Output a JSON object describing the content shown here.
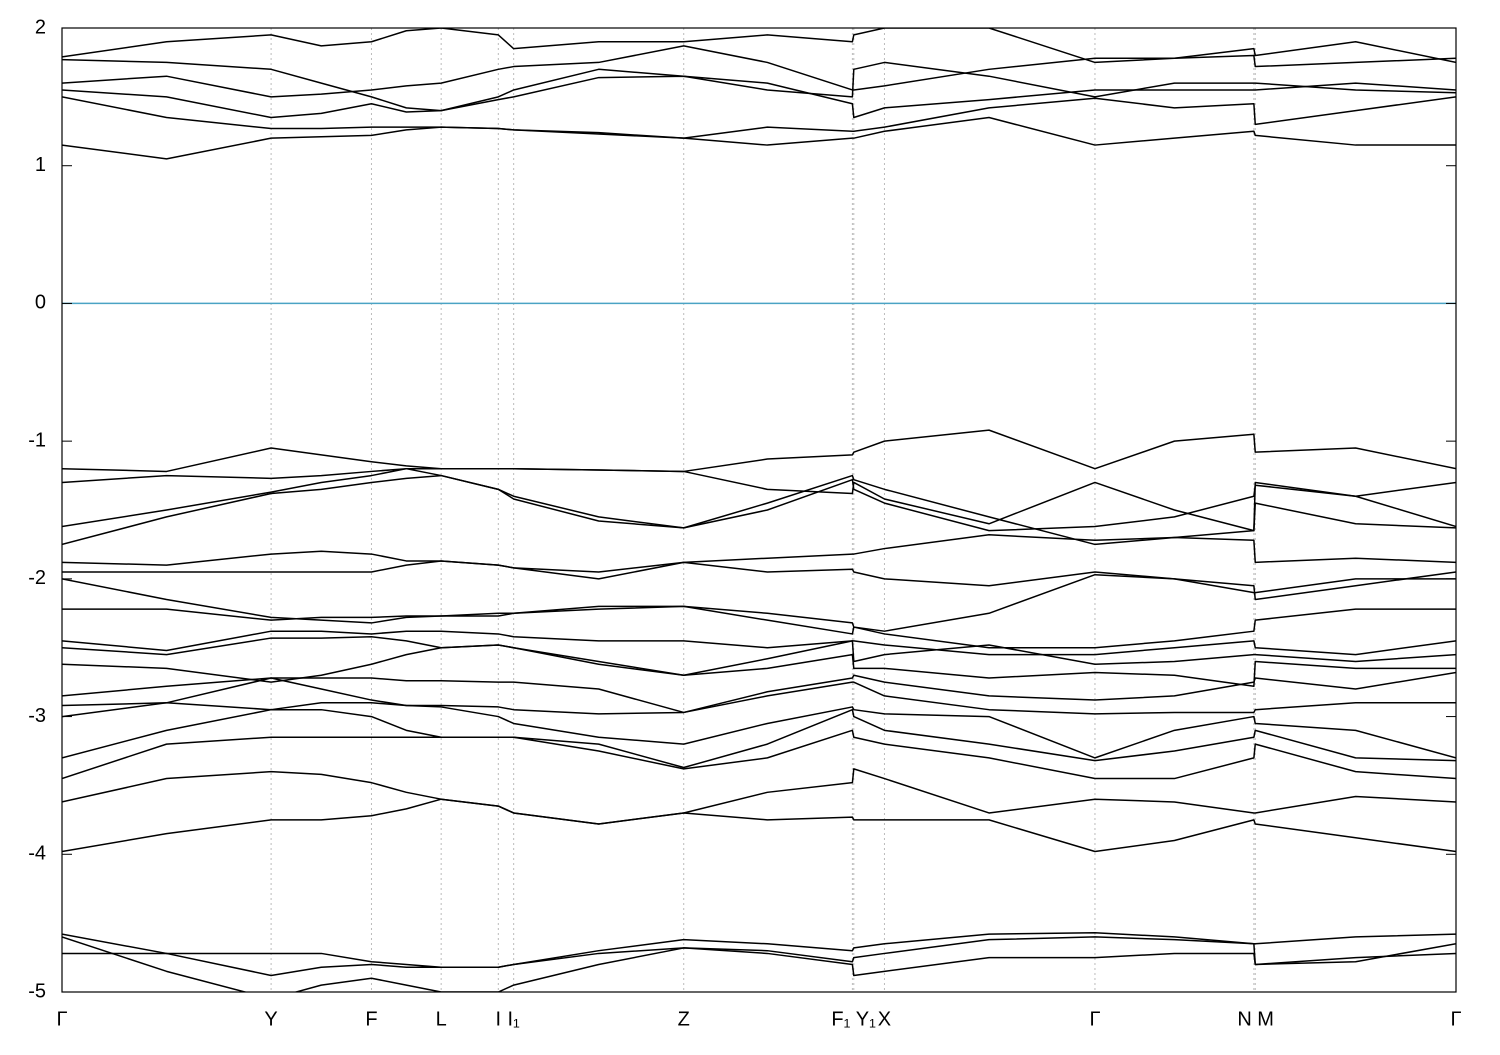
{
  "chart_data": {
    "type": "line",
    "color": "#000000",
    "grid": true,
    "grid_axis": "x",
    "reference_line": {
      "y": 0,
      "color": "#4aa3c4"
    },
    "x": [
      0,
      0.075,
      0.15,
      0.186,
      0.222,
      0.247,
      0.272,
      0.313,
      0.324,
      0.385,
      0.446,
      0.506,
      0.567,
      0.568,
      0.59,
      0.665,
      0.741,
      0.798,
      0.855,
      0.856,
      0.928,
      1.0
    ],
    "xlim": [
      0,
      1
    ],
    "ylim": [
      -5,
      2
    ],
    "yticks": [
      -5,
      -4,
      -3,
      -2,
      -1,
      0,
      1,
      2
    ],
    "xticks": [
      {
        "value": 0,
        "label": "Γ"
      },
      {
        "value": 0.15,
        "label": "Y"
      },
      {
        "value": 0.222,
        "label": "F"
      },
      {
        "value": 0.272,
        "label": "L"
      },
      {
        "value": 0.313,
        "label": "I"
      },
      {
        "value": 0.324,
        "label": "I₁"
      },
      {
        "value": 0.446,
        "label": "Z"
      },
      {
        "value": 0.567,
        "label": "F₁"
      },
      {
        "value": 0.568,
        "label": "Y₁"
      },
      {
        "value": 0.59,
        "label": "X"
      },
      {
        "value": 0.741,
        "label": "Γ"
      },
      {
        "value": 0.855,
        "label": "N"
      },
      {
        "value": 0.856,
        "label": "M"
      },
      {
        "value": 1.0,
        "label": "Γ"
      }
    ],
    "series": [
      {
        "values": [
          1.15,
          1.05,
          1.2,
          1.21,
          1.22,
          1.26,
          1.28,
          1.27,
          1.26,
          1.23,
          1.2,
          1.15,
          1.2,
          1.2,
          1.25,
          1.35,
          1.15,
          1.2,
          1.25,
          1.22,
          1.15,
          1.15
        ]
      },
      {
        "values": [
          1.5,
          1.35,
          1.27,
          1.27,
          1.28,
          1.28,
          1.28,
          1.27,
          1.26,
          1.24,
          1.2,
          1.28,
          1.25,
          1.25,
          1.28,
          1.42,
          1.49,
          1.42,
          1.45,
          1.3,
          1.4,
          1.5
        ]
      },
      {
        "values": [
          1.55,
          1.5,
          1.35,
          1.38,
          1.45,
          1.39,
          1.4,
          1.48,
          1.5,
          1.64,
          1.65,
          1.6,
          1.45,
          1.35,
          1.42,
          1.48,
          1.55,
          1.55,
          1.55,
          1.55,
          1.6,
          1.55
        ]
      },
      {
        "values": [
          1.6,
          1.65,
          1.5,
          1.52,
          1.55,
          1.58,
          1.6,
          1.7,
          1.72,
          1.75,
          1.87,
          1.75,
          1.55,
          1.55,
          1.58,
          1.7,
          1.78,
          1.78,
          1.8,
          1.72,
          1.75,
          1.78
        ]
      },
      {
        "values": [
          1.77,
          1.75,
          1.7,
          1.6,
          1.5,
          1.42,
          1.4,
          1.5,
          1.55,
          1.7,
          1.65,
          1.55,
          1.5,
          1.7,
          1.75,
          1.65,
          1.5,
          1.6,
          1.6,
          1.6,
          1.55,
          1.53
        ]
      },
      {
        "values": [
          1.79,
          1.9,
          1.95,
          1.87,
          1.9,
          1.98,
          2.0,
          1.95,
          1.85,
          1.9,
          1.9,
          1.95,
          1.9,
          1.95,
          2.0,
          2.0,
          1.75,
          1.78,
          1.85,
          1.8,
          1.9,
          1.75
        ]
      },
      {
        "values": [
          -1.2,
          -1.22,
          -1.05,
          -1.1,
          -1.15,
          -1.18,
          -1.2,
          -1.2,
          -1.2,
          -1.21,
          -1.22,
          -1.13,
          -1.1,
          -1.08,
          -1.0,
          -0.92,
          -1.2,
          -1.0,
          -0.95,
          -1.08,
          -1.05,
          -1.2
        ]
      },
      {
        "values": [
          -1.3,
          -1.25,
          -1.27,
          -1.25,
          -1.22,
          -1.2,
          -1.2,
          -1.2,
          -1.2,
          -1.21,
          -1.22,
          -1.35,
          -1.38,
          -1.3,
          -1.42,
          -1.6,
          -1.3,
          -1.5,
          -1.65,
          -1.3,
          -1.4,
          -1.3
        ]
      },
      {
        "values": [
          -1.62,
          -1.5,
          -1.37,
          -1.3,
          -1.25,
          -1.2,
          -1.25,
          -1.35,
          -1.4,
          -1.55,
          -1.63,
          -1.5,
          -1.28,
          -1.35,
          -1.45,
          -1.65,
          -1.62,
          -1.55,
          -1.4,
          -1.32,
          -1.4,
          -1.62
        ]
      },
      {
        "values": [
          -1.75,
          -1.55,
          -1.38,
          -1.35,
          -1.3,
          -1.27,
          -1.25,
          -1.35,
          -1.42,
          -1.58,
          -1.63,
          -1.45,
          -1.25,
          -1.28,
          -1.35,
          -1.55,
          -1.75,
          -1.7,
          -1.65,
          -1.45,
          -1.6,
          -1.63
        ]
      },
      {
        "values": [
          -1.88,
          -1.9,
          -1.82,
          -1.8,
          -1.82,
          -1.87,
          -1.87,
          -1.9,
          -1.92,
          -2.0,
          -1.88,
          -1.85,
          -1.82,
          -1.82,
          -1.78,
          -1.68,
          -1.72,
          -1.7,
          -1.72,
          -1.88,
          -1.85,
          -1.88
        ]
      },
      {
        "values": [
          -1.95,
          -1.95,
          -1.95,
          -1.95,
          -1.95,
          -1.9,
          -1.87,
          -1.9,
          -1.92,
          -1.95,
          -1.88,
          -1.95,
          -1.93,
          -1.95,
          -2.0,
          -2.05,
          -1.95,
          -2.0,
          -2.05,
          -2.15,
          -2.05,
          -1.95
        ]
      },
      {
        "values": [
          -2.0,
          -2.15,
          -2.28,
          -2.3,
          -2.32,
          -2.28,
          -2.27,
          -2.25,
          -2.25,
          -2.2,
          -2.2,
          -2.25,
          -2.32,
          -2.35,
          -2.38,
          -2.25,
          -1.97,
          -2.0,
          -2.1,
          -2.1,
          -2.0,
          -2.0
        ]
      },
      {
        "values": [
          -2.22,
          -2.22,
          -2.3,
          -2.28,
          -2.28,
          -2.27,
          -2.27,
          -2.27,
          -2.25,
          -2.22,
          -2.2,
          -2.3,
          -2.4,
          -2.35,
          -2.4,
          -2.5,
          -2.5,
          -2.45,
          -2.38,
          -2.3,
          -2.22,
          -2.22
        ]
      },
      {
        "values": [
          -2.45,
          -2.52,
          -2.38,
          -2.38,
          -2.4,
          -2.38,
          -2.38,
          -2.4,
          -2.42,
          -2.45,
          -2.45,
          -2.5,
          -2.45,
          -2.45,
          -2.48,
          -2.55,
          -2.55,
          -2.5,
          -2.45,
          -2.5,
          -2.55,
          -2.45
        ]
      },
      {
        "values": [
          -2.5,
          -2.55,
          -2.43,
          -2.43,
          -2.42,
          -2.45,
          -2.5,
          -2.48,
          -2.5,
          -2.6,
          -2.7,
          -2.58,
          -2.45,
          -2.6,
          -2.55,
          -2.48,
          -2.62,
          -2.6,
          -2.55,
          -2.55,
          -2.6,
          -2.55
        ]
      },
      {
        "values": [
          -2.62,
          -2.65,
          -2.75,
          -2.7,
          -2.62,
          -2.55,
          -2.5,
          -2.48,
          -2.5,
          -2.62,
          -2.7,
          -2.65,
          -2.55,
          -2.65,
          -2.65,
          -2.72,
          -2.68,
          -2.7,
          -2.78,
          -2.6,
          -2.65,
          -2.65
        ]
      },
      {
        "values": [
          -2.85,
          -2.78,
          -2.72,
          -2.72,
          -2.72,
          -2.74,
          -2.74,
          -2.75,
          -2.75,
          -2.8,
          -2.97,
          -2.82,
          -2.72,
          -2.7,
          -2.75,
          -2.85,
          -2.88,
          -2.85,
          -2.75,
          -2.72,
          -2.8,
          -2.68
        ]
      },
      {
        "values": [
          -2.92,
          -2.9,
          -2.95,
          -2.9,
          -2.9,
          -2.92,
          -2.92,
          -2.93,
          -2.95,
          -2.98,
          -2.97,
          -2.85,
          -2.75,
          -2.75,
          -2.85,
          -2.95,
          -2.98,
          -2.97,
          -2.97,
          -2.95,
          -2.9,
          -2.9
        ]
      },
      {
        "values": [
          -3.0,
          -2.9,
          -2.72,
          -2.8,
          -2.88,
          -2.92,
          -2.93,
          -3.0,
          -3.05,
          -3.15,
          -3.2,
          -3.05,
          -2.93,
          -2.95,
          -2.98,
          -3.0,
          -3.3,
          -3.1,
          -3.0,
          -3.05,
          -3.1,
          -3.3
        ]
      },
      {
        "values": [
          -3.3,
          -3.1,
          -2.95,
          -2.95,
          -3.0,
          -3.1,
          -3.15,
          -3.15,
          -3.15,
          -3.2,
          -3.37,
          -3.2,
          -2.95,
          -3.0,
          -3.1,
          -3.2,
          -3.32,
          -3.25,
          -3.15,
          -3.1,
          -3.3,
          -3.32
        ]
      },
      {
        "values": [
          -3.45,
          -3.2,
          -3.15,
          -3.15,
          -3.15,
          -3.15,
          -3.15,
          -3.15,
          -3.15,
          -3.25,
          -3.38,
          -3.3,
          -3.1,
          -3.15,
          -3.2,
          -3.3,
          -3.45,
          -3.45,
          -3.3,
          -3.2,
          -3.4,
          -3.45
        ]
      },
      {
        "values": [
          -3.62,
          -3.45,
          -3.4,
          -3.42,
          -3.48,
          -3.55,
          -3.6,
          -3.65,
          -3.7,
          -3.78,
          -3.7,
          -3.55,
          -3.48,
          -3.38,
          -3.45,
          -3.7,
          -3.6,
          -3.62,
          -3.7,
          -3.7,
          -3.58,
          -3.62
        ]
      },
      {
        "values": [
          -3.98,
          -3.85,
          -3.75,
          -3.75,
          -3.72,
          -3.67,
          -3.6,
          -3.65,
          -3.7,
          -3.78,
          -3.7,
          -3.75,
          -3.73,
          -3.75,
          -3.75,
          -3.75,
          -3.98,
          -3.9,
          -3.75,
          -3.78,
          -3.88,
          -3.98
        ]
      },
      {
        "values": [
          -4.58,
          -4.72,
          -4.72,
          -4.72,
          -4.78,
          -4.8,
          -4.82,
          -4.82,
          -4.8,
          -4.7,
          -4.62,
          -4.65,
          -4.7,
          -4.68,
          -4.65,
          -4.58,
          -4.57,
          -4.6,
          -4.65,
          -4.65,
          -4.6,
          -4.58
        ]
      },
      {
        "values": [
          -4.72,
          -4.72,
          -4.88,
          -4.82,
          -4.8,
          -4.82,
          -4.82,
          -4.82,
          -4.8,
          -4.72,
          -4.68,
          -4.7,
          -4.78,
          -4.75,
          -4.72,
          -4.62,
          -4.6,
          -4.62,
          -4.65,
          -4.8,
          -4.75,
          -4.72
        ]
      },
      {
        "values": [
          -4.6,
          -4.85,
          -5.05,
          -4.95,
          -4.9,
          -4.95,
          -5.0,
          -5.0,
          -4.95,
          -4.8,
          -4.68,
          -4.72,
          -4.8,
          -4.88,
          -4.85,
          -4.75,
          -4.75,
          -4.72,
          -4.72,
          -4.8,
          -4.78,
          -4.65
        ]
      }
    ]
  }
}
